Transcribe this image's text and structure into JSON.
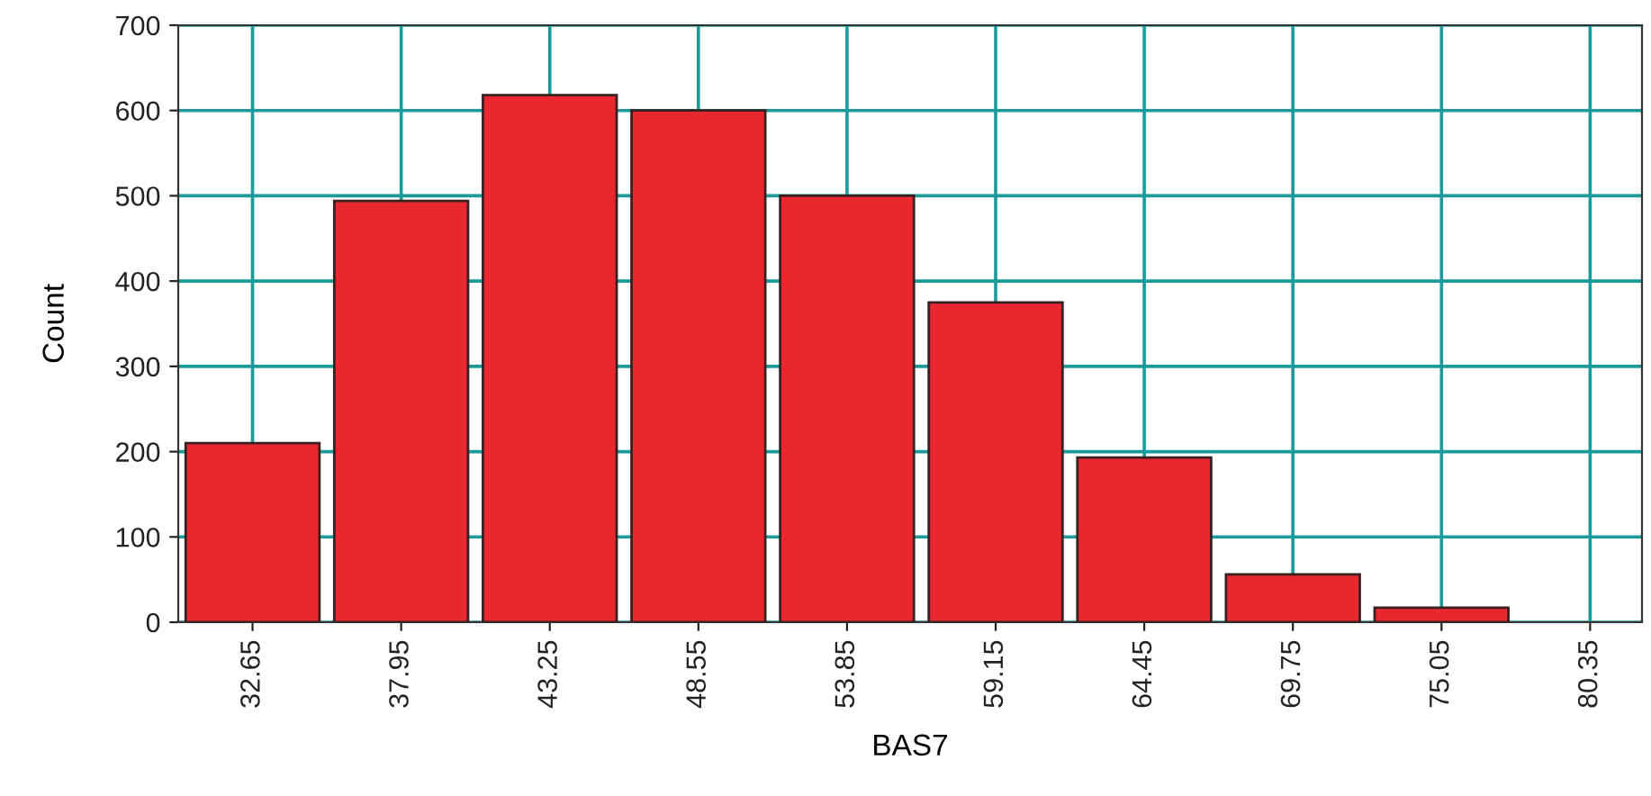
{
  "chart_data": {
    "type": "histogram",
    "xlabel": "BAS7",
    "ylabel": "Count",
    "bins": [
      30.0,
      35.3,
      40.6,
      45.9,
      51.2,
      56.5,
      61.8,
      67.1,
      72.4,
      77.7
    ],
    "values": [
      210,
      494,
      618,
      600,
      500,
      375,
      193,
      56,
      17
    ],
    "color": "#e8282e",
    "xlim": [
      30.0,
      82.2
    ],
    "xticks": [
      32.65,
      37.95,
      43.25,
      48.55,
      53.85,
      59.15,
      64.45,
      69.75,
      75.05,
      80.35
    ],
    "ylim": [
      0,
      700
    ],
    "yticks": [
      0,
      100,
      200,
      300,
      400,
      500,
      600,
      700
    ],
    "grid": true
  }
}
